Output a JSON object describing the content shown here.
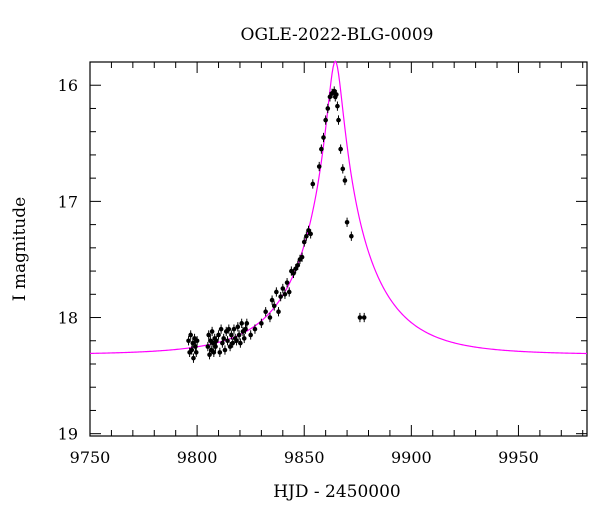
{
  "chart_data": {
    "type": "scatter",
    "title": "OGLE-2022-BLG-0009",
    "xlabel": "HJD - 2450000",
    "ylabel": "I magnitude",
    "xlim": [
      9750,
      9982
    ],
    "ylim": [
      15.8,
      19.02
    ],
    "y_inverted": true,
    "grid": false,
    "x_ticks": [
      9750,
      9800,
      9850,
      9900,
      9950
    ],
    "x_tick_labels": [
      "9750",
      "9800",
      "9850",
      "9900",
      "9950"
    ],
    "y_ticks": [
      16,
      17,
      18,
      19
    ],
    "y_tick_labels": [
      "16",
      "17",
      "18",
      "19"
    ],
    "model": {
      "t0": 9864.5,
      "u0": 0.098,
      "tE": 33,
      "baseline_mag": 18.32,
      "color": "#ff00ff"
    },
    "series": [
      {
        "color": "#000000",
        "error_bar": 0.04,
        "x": [
          9796,
          9796.5,
          9797,
          9797.5,
          9798,
          9798.3,
          9798.8,
          9799.2,
          9799.6,
          9800,
          9805,
          9805.4,
          9805.8,
          9806.2,
          9806.6,
          9807,
          9807.4,
          9807.8,
          9808.2,
          9808.6,
          9809,
          9810,
          9810.6,
          9811.2,
          9811.8,
          9812.4,
          9813,
          9813.6,
          9814.2,
          9814.8,
          9815.4,
          9816,
          9816.6,
          9817.2,
          9817.8,
          9818.4,
          9819,
          9819.6,
          9820.2,
          9820.8,
          9821.4,
          9822,
          9822.6,
          9823.2,
          9825,
          9827,
          9830,
          9832,
          9834,
          9835,
          9836,
          9837,
          9838,
          9839,
          9840,
          9841,
          9842,
          9843,
          9844,
          9845,
          9846,
          9847,
          9848,
          9849,
          9850,
          9851,
          9852,
          9853,
          9854,
          9857,
          9858,
          9859,
          9860,
          9861,
          9862,
          9863,
          9864,
          9864.5,
          9865,
          9865.5,
          9866,
          9867,
          9868,
          9869,
          9870,
          9872,
          9876,
          9878
        ],
        "y": [
          18.2,
          18.3,
          18.15,
          18.28,
          18.22,
          18.35,
          18.18,
          18.25,
          18.3,
          18.2,
          18.25,
          18.15,
          18.32,
          18.2,
          18.28,
          18.12,
          18.22,
          18.3,
          18.18,
          18.25,
          18.2,
          18.15,
          18.3,
          18.1,
          18.22,
          18.18,
          18.28,
          18.12,
          18.2,
          18.1,
          18.25,
          18.15,
          18.22,
          18.1,
          18.18,
          18.2,
          18.08,
          18.15,
          18.22,
          18.05,
          18.12,
          18.18,
          18.1,
          18.05,
          18.15,
          18.1,
          18.05,
          17.95,
          18.0,
          17.85,
          17.9,
          17.78,
          17.95,
          17.82,
          17.75,
          17.8,
          17.7,
          17.78,
          17.6,
          17.62,
          17.58,
          17.55,
          17.5,
          17.48,
          17.35,
          17.3,
          17.25,
          17.28,
          16.85,
          16.7,
          16.55,
          16.45,
          16.3,
          16.2,
          16.1,
          16.07,
          16.05,
          16.1,
          16.08,
          16.18,
          16.3,
          16.55,
          16.72,
          16.82,
          17.18,
          17.3,
          18.0,
          18.0
        ]
      }
    ]
  }
}
